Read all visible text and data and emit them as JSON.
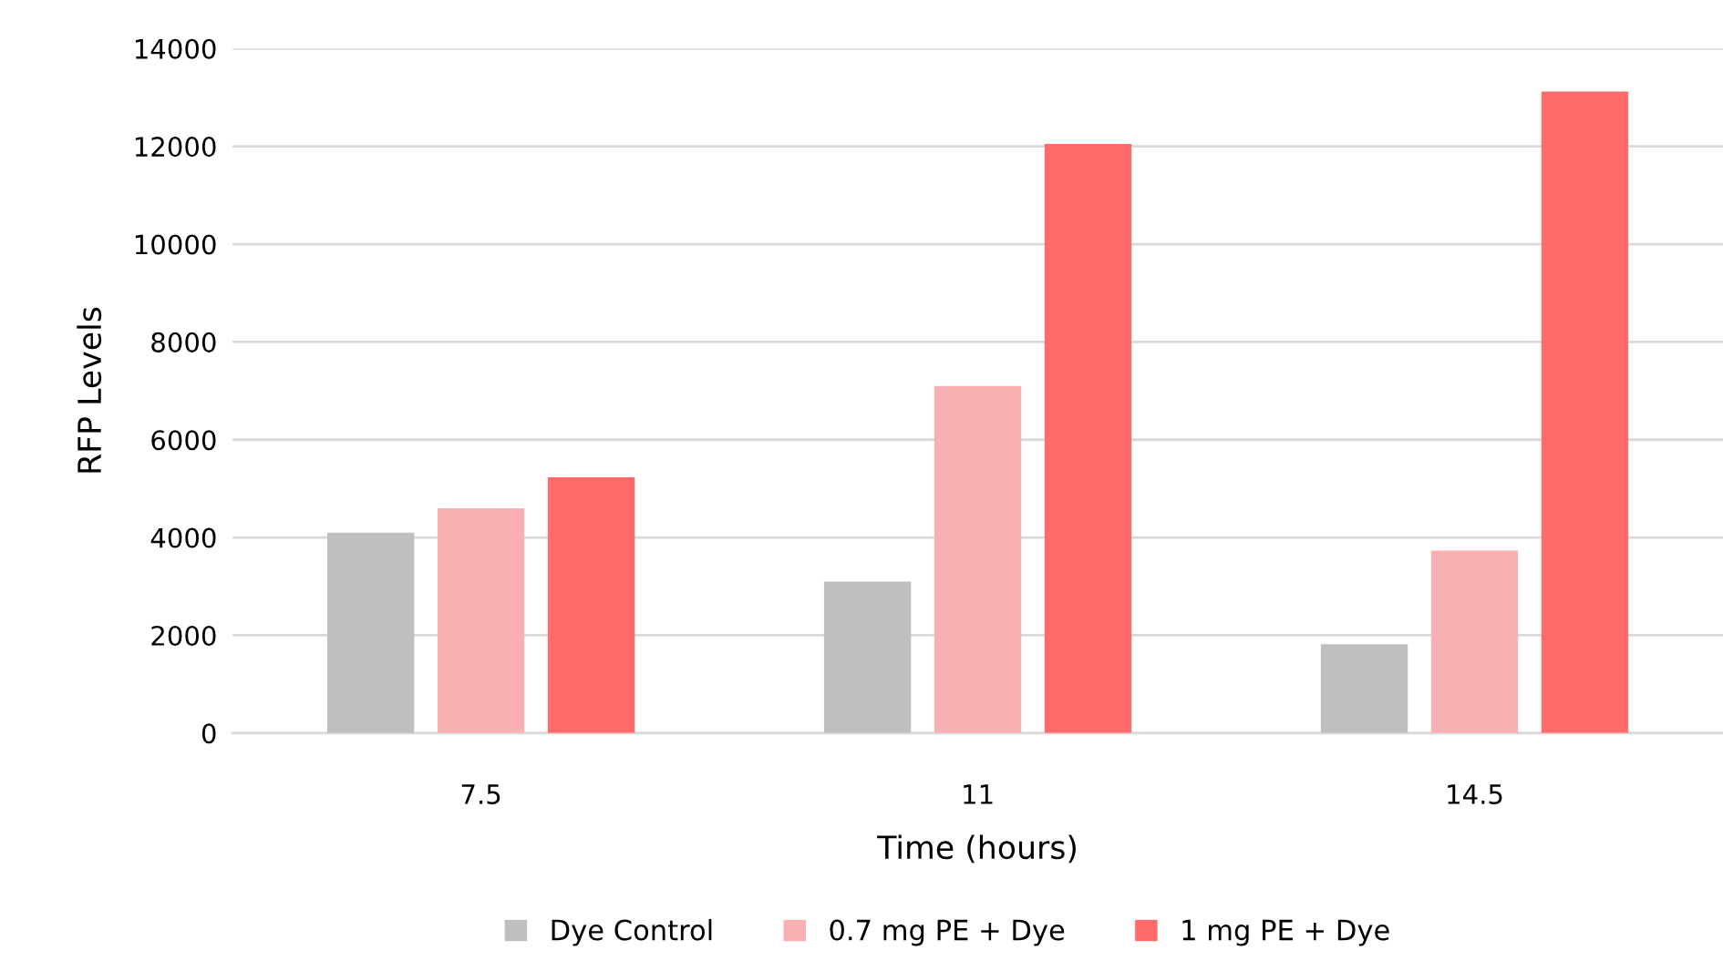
{
  "chart_data": {
    "type": "bar",
    "xlabel": "Time (hours)",
    "ylabel": "RFP Levels",
    "categories": [
      "7.5",
      "11",
      "14.5"
    ],
    "series": [
      {
        "name": "Dye Control",
        "color": "#bfbfbf",
        "values": [
          4100,
          3100,
          1820
        ]
      },
      {
        "name": "0.7 mg PE + Dye",
        "color": "#f8b0b3",
        "values": [
          4600,
          7100,
          3730
        ]
      },
      {
        "name": "1 mg PE + Dye",
        "color": "#ff6b6b",
        "values": [
          5230,
          12050,
          13120
        ]
      }
    ],
    "ylim": [
      0,
      14000
    ],
    "yticks": [
      0,
      2000,
      4000,
      6000,
      8000,
      10000,
      12000,
      14000
    ],
    "grid": "y",
    "legend": "bottom"
  }
}
